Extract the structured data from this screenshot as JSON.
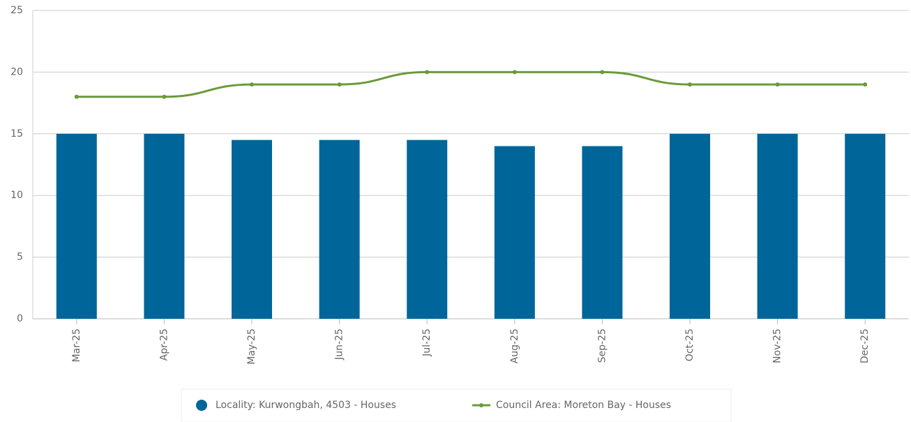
{
  "chart_data": {
    "type": "bar",
    "categories": [
      "Mar-25",
      "Apr-25",
      "May-25",
      "Jun-25",
      "Jul-25",
      "Aug-25",
      "Sep-25",
      "Oct-25",
      "Nov-25",
      "Dec-25"
    ],
    "series": [
      {
        "name": "Locality: Kurwongbah, 4503 - Houses",
        "type": "bar",
        "color": "#00669a",
        "values": [
          15,
          15,
          14.5,
          14.5,
          14.5,
          14,
          14,
          15,
          15,
          15
        ]
      },
      {
        "name": "Council Area: Moreton Bay - Houses",
        "type": "line",
        "color": "#6a9a3a",
        "values": [
          18,
          18,
          19,
          19,
          20,
          20,
          20,
          19,
          19,
          19
        ]
      }
    ],
    "ylim": [
      0,
      25
    ],
    "yticks": [
      0,
      5,
      10,
      15,
      20,
      25
    ],
    "grid": true,
    "legend": "bottom"
  }
}
